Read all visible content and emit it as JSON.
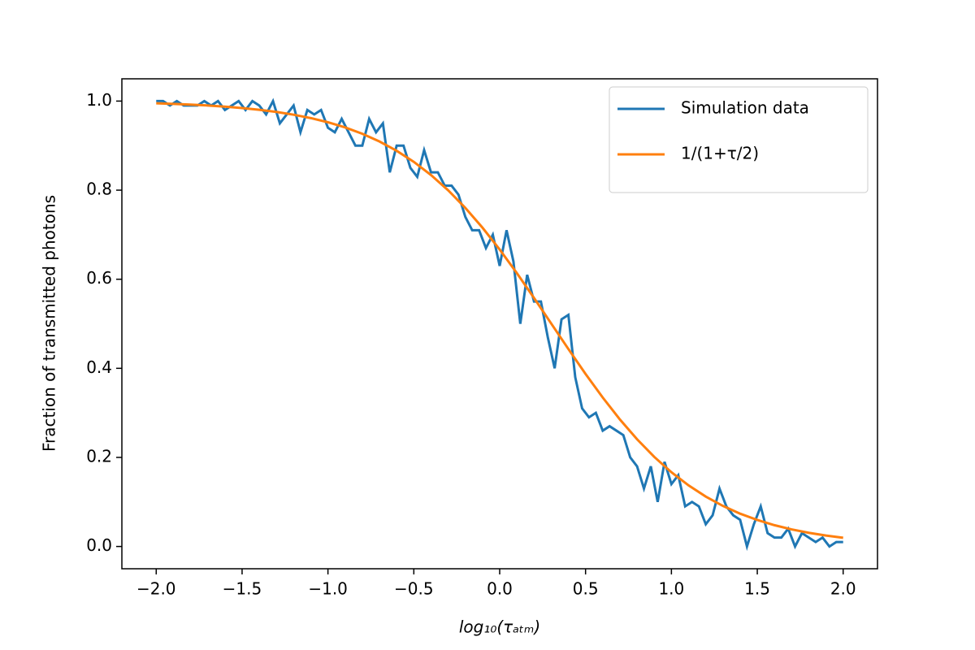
{
  "chart_data": {
    "type": "line",
    "x_label": "log₁₀(τₐₜₘ)",
    "y_label": "Fraction of transmitted photons",
    "xlim": [
      -2.2,
      2.2
    ],
    "ylim": [
      -0.05,
      1.05
    ],
    "xticks": [
      {
        "value": -2.0,
        "label": "−2.0"
      },
      {
        "value": -1.5,
        "label": "−1.5"
      },
      {
        "value": -1.0,
        "label": "−1.0"
      },
      {
        "value": -0.5,
        "label": "−0.5"
      },
      {
        "value": 0.0,
        "label": "0.0"
      },
      0.5,
      {
        "value": 1.0,
        "label": "1.0"
      },
      1.5,
      {
        "value": 2.0,
        "label": "2.0"
      }
    ],
    "yticks": [
      {
        "value": 0.0,
        "label": "0.0"
      },
      0.2,
      0.4,
      0.6,
      0.8,
      {
        "value": 1.0,
        "label": "1.0"
      }
    ],
    "legend": "upper right",
    "series": [
      {
        "name": "Simulation data",
        "color": "#1f77b4",
        "x": [
          -2.0,
          -1.96,
          -1.92,
          -1.88,
          -1.84,
          -1.8,
          -1.76,
          -1.72,
          -1.68,
          -1.64,
          -1.6,
          -1.56,
          -1.52,
          -1.48,
          -1.44,
          -1.4,
          -1.36,
          -1.32,
          -1.28,
          -1.24,
          -1.2,
          -1.16,
          -1.12,
          -1.08,
          -1.04,
          -1.0,
          -0.96,
          -0.92,
          -0.88,
          -0.84,
          -0.8,
          -0.76,
          -0.72,
          -0.68,
          -0.64,
          -0.6,
          -0.56,
          -0.52,
          -0.48,
          -0.44,
          -0.4,
          -0.36,
          -0.32,
          -0.28,
          -0.24,
          -0.2,
          -0.16,
          -0.12,
          -0.08,
          -0.04,
          0.0,
          0.04,
          0.08,
          0.12,
          0.16,
          0.2,
          0.24,
          0.28,
          0.32,
          0.36,
          0.4,
          0.44,
          0.48,
          0.52,
          0.56,
          0.6,
          0.64,
          0.68,
          0.72,
          0.76,
          0.8,
          0.84,
          0.88,
          0.92,
          0.96,
          1.0,
          1.04,
          1.08,
          1.12,
          1.16,
          1.2,
          1.24,
          1.28,
          1.32,
          1.36,
          1.4,
          1.44,
          1.48,
          1.52,
          1.56,
          1.6,
          1.64,
          1.68,
          1.72,
          1.76,
          1.8,
          1.84,
          1.88,
          1.92,
          1.96,
          2.0
        ],
        "values": [
          1.0,
          1.0,
          0.99,
          1.0,
          0.99,
          0.99,
          0.99,
          1.0,
          0.99,
          1.0,
          0.98,
          0.99,
          1.0,
          0.98,
          1.0,
          0.99,
          0.97,
          1.0,
          0.95,
          0.97,
          0.99,
          0.93,
          0.98,
          0.97,
          0.98,
          0.94,
          0.93,
          0.96,
          0.93,
          0.9,
          0.9,
          0.96,
          0.93,
          0.95,
          0.84,
          0.9,
          0.9,
          0.85,
          0.83,
          0.89,
          0.84,
          0.84,
          0.81,
          0.81,
          0.79,
          0.74,
          0.71,
          0.71,
          0.67,
          0.7,
          0.63,
          0.71,
          0.64,
          0.5,
          0.61,
          0.55,
          0.55,
          0.47,
          0.4,
          0.51,
          0.52,
          0.38,
          0.31,
          0.29,
          0.3,
          0.26,
          0.27,
          0.26,
          0.25,
          0.2,
          0.18,
          0.13,
          0.18,
          0.1,
          0.19,
          0.14,
          0.16,
          0.09,
          0.1,
          0.09,
          0.05,
          0.07,
          0.13,
          0.09,
          0.07,
          0.06,
          0.0,
          0.05,
          0.09,
          0.03,
          0.02,
          0.02,
          0.04,
          0.0,
          0.03,
          0.02,
          0.01,
          0.02,
          0.0,
          0.01,
          0.01
        ]
      },
      {
        "name": "1/(1+τ/2)",
        "color": "#ff7f0e",
        "x": [
          -2.0,
          -1.9,
          -1.8,
          -1.7,
          -1.6,
          -1.5,
          -1.4,
          -1.3,
          -1.2,
          -1.1,
          -1.0,
          -0.9,
          -0.8,
          -0.7,
          -0.6,
          -0.5,
          -0.4,
          -0.3,
          -0.2,
          -0.1,
          0.0,
          0.1,
          0.2,
          0.3,
          0.4,
          0.5,
          0.6,
          0.7,
          0.8,
          0.9,
          1.0,
          1.1,
          1.2,
          1.3,
          1.4,
          1.5,
          1.6,
          1.7,
          1.8,
          1.9,
          2.0
        ],
        "values": [
          0.995,
          0.9937,
          0.9921,
          0.9901,
          0.9876,
          0.9844,
          0.9805,
          0.9756,
          0.9694,
          0.9618,
          0.9524,
          0.9408,
          0.9266,
          0.9093,
          0.8884,
          0.8635,
          0.834,
          0.7996,
          0.7602,
          0.7157,
          0.6667,
          0.6137,
          0.5579,
          0.5006,
          0.4433,
          0.3874,
          0.3344,
          0.2852,
          0.2407,
          0.2011,
          0.1667,
          0.1371,
          0.112,
          0.0911,
          0.0737,
          0.0595,
          0.0478,
          0.0384,
          0.0307,
          0.0246,
          0.0196
        ]
      }
    ]
  }
}
